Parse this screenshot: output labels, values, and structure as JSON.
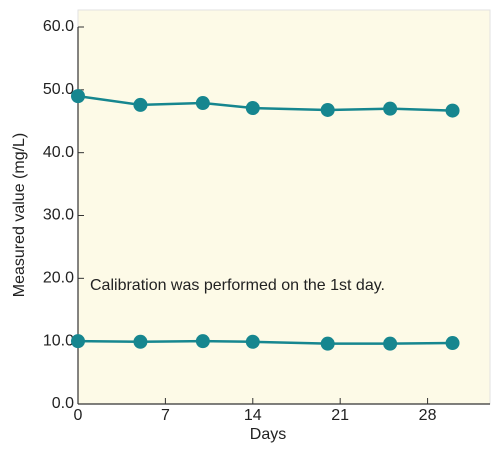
{
  "chart_data": {
    "type": "line",
    "x_label": "Days",
    "y_label": "Measured value (mg/L)",
    "annotation": "Calibration was performed on the 1st day.",
    "x": [
      0,
      5,
      10,
      14,
      20,
      25,
      30
    ],
    "series": [
      {
        "color": "#16868f",
        "values": [
          49.0,
          47.6,
          47.9,
          47.1,
          46.8,
          47.0,
          46.7
        ]
      },
      {
        "color": "#16868f",
        "values": [
          10.0,
          9.9,
          10.0,
          9.9,
          9.6,
          9.6,
          9.7
        ]
      }
    ],
    "xlim": [
      0,
      33
    ],
    "xticks": [
      0,
      7,
      14,
      21,
      28
    ],
    "ylim": [
      0,
      60
    ],
    "yticks": [
      {
        "value": 0,
        "label": "0.0"
      },
      {
        "value": 10,
        "label": "10.0"
      },
      {
        "value": 20,
        "label": "20.0"
      },
      {
        "value": 30,
        "label": "30.0"
      },
      {
        "value": 40,
        "label": "40.0"
      },
      {
        "value": 50,
        "label": "50.0"
      },
      {
        "value": 60,
        "label": "60.0"
      }
    ],
    "background": "#fdfae7"
  }
}
